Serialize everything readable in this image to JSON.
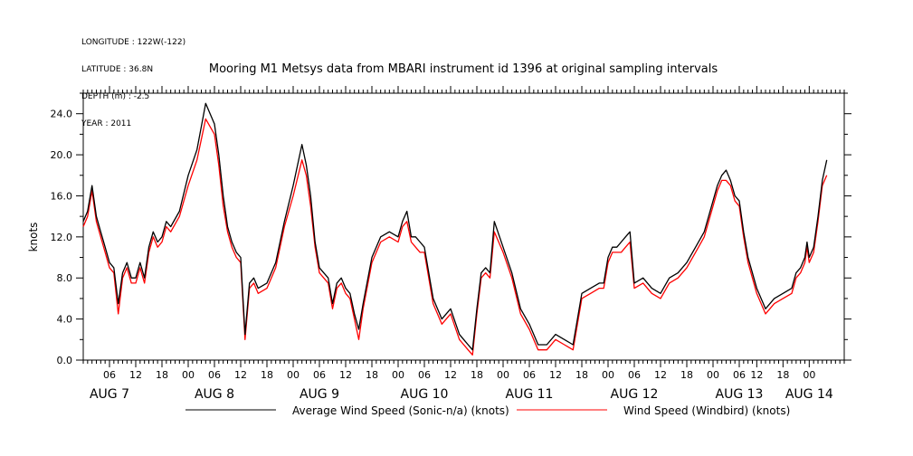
{
  "meta_lines": [
    "LONGITUDE : 122W(-122)",
    "LATITUDE : 36.8N",
    "DEPTH (m) : -2.5",
    "YEAR : 2011"
  ],
  "chart_data": {
    "type": "line",
    "title": "Mooring M1 Metsys data from MBARI instrument id 1396 at original sampling intervals",
    "ylabel": "knots",
    "xlabel": "",
    "ylim": [
      0,
      26
    ],
    "xlim_hours": [
      0,
      174
    ],
    "yticks": [
      "0.0",
      "4.0",
      "8.0",
      "12.0",
      "16.0",
      "20.0",
      "24.0"
    ],
    "yticks_values": [
      0,
      4,
      8,
      12,
      16,
      20,
      24
    ],
    "xtick_hour_labels": [
      "06",
      "12",
      "18",
      "00",
      "06",
      "12",
      "18",
      "00",
      "06",
      "12",
      "18",
      "00",
      "06",
      "12",
      "18",
      "00",
      "06",
      "12",
      "18",
      "00",
      "06",
      "12",
      "18",
      "00",
      "06",
      "12",
      "18",
      "00"
    ],
    "xtick_hour_values": [
      6,
      12,
      18,
      24,
      30,
      36,
      42,
      48,
      54,
      60,
      66,
      72,
      78,
      84,
      90,
      96,
      102,
      108,
      114,
      120,
      126,
      132,
      138,
      144,
      150,
      154,
      160,
      166
    ],
    "day_labels": [
      "AUG  7",
      "AUG  8",
      "AUG  9",
      "AUG 10",
      "AUG 11",
      "AUG 12",
      "AUG 13",
      "AUG 14"
    ],
    "day_label_hours": [
      6,
      30,
      54,
      78,
      102,
      126,
      150,
      166
    ],
    "grid": false,
    "legend_position": "bottom",
    "series": [
      {
        "name": "Average Wind Speed (Sonic-n/a) (knots)",
        "color": "#000000",
        "x": [
          0,
          1,
          2,
          3,
          4,
          5,
          6,
          7,
          8,
          9,
          10,
          11,
          12,
          13,
          14,
          15,
          16,
          17,
          18,
          19,
          20,
          22,
          24,
          26,
          28,
          30,
          31,
          32,
          33,
          34,
          35,
          36,
          37,
          38,
          39,
          40,
          42,
          44,
          46,
          48,
          50,
          51,
          52,
          53,
          54,
          55,
          56,
          57,
          58,
          59,
          60,
          61,
          62,
          63,
          64,
          66,
          68,
          70,
          72,
          73,
          74,
          75,
          76,
          77,
          78,
          80,
          82,
          84,
          86,
          87,
          88,
          89,
          90,
          91,
          92,
          93,
          94,
          96,
          98,
          100,
          102,
          104,
          106,
          108,
          110,
          112,
          114,
          116,
          118,
          119,
          120,
          121,
          122,
          123,
          124,
          125,
          126,
          128,
          130,
          132,
          134,
          136,
          138,
          140,
          142,
          144,
          145,
          146,
          147,
          148,
          149,
          150,
          151,
          152,
          153,
          154,
          156,
          158,
          160,
          162,
          163,
          164,
          165,
          165.5,
          166,
          167,
          168,
          169,
          170
        ],
        "y": [
          13.5,
          14.5,
          17.0,
          14.0,
          12.5,
          11.0,
          9.5,
          9.0,
          5.5,
          8.5,
          9.5,
          8.0,
          8.0,
          9.5,
          8.0,
          11.0,
          12.5,
          11.5,
          12.0,
          13.5,
          13.0,
          14.5,
          18.0,
          20.5,
          25.0,
          23.0,
          20.0,
          16.0,
          13.0,
          11.5,
          10.5,
          10.0,
          2.5,
          7.5,
          8.0,
          7.0,
          7.5,
          9.5,
          13.5,
          17.0,
          21.0,
          19.0,
          16.0,
          11.5,
          9.0,
          8.5,
          8.0,
          5.5,
          7.5,
          8.0,
          7.0,
          6.5,
          4.5,
          3.0,
          5.5,
          10.0,
          12.0,
          12.5,
          12.0,
          13.5,
          14.5,
          12.0,
          12.0,
          11.5,
          11.0,
          6.0,
          4.0,
          5.0,
          2.5,
          2.0,
          1.5,
          1.0,
          5.0,
          8.5,
          9.0,
          8.5,
          13.5,
          11.0,
          8.5,
          5.0,
          3.5,
          1.5,
          1.5,
          2.5,
          2.0,
          1.5,
          6.5,
          7.0,
          7.5,
          7.5,
          10.0,
          11.0,
          11.0,
          11.5,
          12.0,
          12.5,
          7.5,
          8.0,
          7.0,
          6.5,
          8.0,
          8.5,
          9.5,
          11.0,
          12.5,
          15.5,
          17.0,
          18.0,
          18.5,
          17.5,
          16.0,
          15.5,
          12.5,
          10.0,
          8.5,
          7.0,
          5.0,
          6.0,
          6.5,
          7.0,
          8.5,
          9.0,
          10.0,
          11.5,
          10.0,
          11.0,
          14.0,
          17.5,
          19.5
        ]
      },
      {
        "name": "Wind Speed (Windbird) (knots)",
        "color": "#ff0000",
        "x": [
          0,
          1,
          2,
          3,
          4,
          5,
          6,
          7,
          8,
          9,
          10,
          11,
          12,
          13,
          14,
          15,
          16,
          17,
          18,
          19,
          20,
          22,
          24,
          26,
          28,
          30,
          31,
          32,
          33,
          34,
          35,
          36,
          37,
          38,
          39,
          40,
          42,
          44,
          46,
          48,
          50,
          51,
          52,
          53,
          54,
          55,
          56,
          57,
          58,
          59,
          60,
          61,
          62,
          63,
          64,
          66,
          68,
          70,
          72,
          73,
          74,
          75,
          76,
          77,
          78,
          80,
          82,
          84,
          86,
          87,
          88,
          89,
          90,
          91,
          92,
          93,
          94,
          96,
          98,
          100,
          102,
          104,
          106,
          108,
          110,
          112,
          114,
          116,
          118,
          119,
          120,
          121,
          122,
          123,
          124,
          125,
          126,
          128,
          130,
          132,
          134,
          136,
          138,
          140,
          142,
          144,
          145,
          146,
          147,
          148,
          149,
          150,
          151,
          152,
          153,
          154,
          156,
          158,
          160,
          162,
          163,
          164,
          165,
          165.5,
          166,
          167,
          168,
          169,
          170
        ],
        "y": [
          13.0,
          14.0,
          16.5,
          13.5,
          12.0,
          10.5,
          9.0,
          8.5,
          4.5,
          8.0,
          9.0,
          7.5,
          7.5,
          9.0,
          7.5,
          10.5,
          12.0,
          11.0,
          11.5,
          13.0,
          12.5,
          14.0,
          17.0,
          19.5,
          23.5,
          22.0,
          19.0,
          15.0,
          12.5,
          11.0,
          10.0,
          9.5,
          2.0,
          7.0,
          7.5,
          6.5,
          7.0,
          9.0,
          13.0,
          16.0,
          19.5,
          18.0,
          15.0,
          11.0,
          8.5,
          8.0,
          7.5,
          5.0,
          7.0,
          7.5,
          6.5,
          6.0,
          4.0,
          2.0,
          5.0,
          9.5,
          11.5,
          12.0,
          11.5,
          13.0,
          13.5,
          11.5,
          11.0,
          10.5,
          10.5,
          5.5,
          3.5,
          4.5,
          2.0,
          1.5,
          1.0,
          0.5,
          4.5,
          8.0,
          8.5,
          8.0,
          12.5,
          10.5,
          8.0,
          4.5,
          3.0,
          1.0,
          1.0,
          2.0,
          1.5,
          1.0,
          6.0,
          6.5,
          7.0,
          7.0,
          9.5,
          10.5,
          10.5,
          10.5,
          11.0,
          11.5,
          7.0,
          7.5,
          6.5,
          6.0,
          7.5,
          8.0,
          9.0,
          10.5,
          12.0,
          15.0,
          16.5,
          17.5,
          17.5,
          17.0,
          15.5,
          15.0,
          12.0,
          9.5,
          8.0,
          6.5,
          4.5,
          5.5,
          6.0,
          6.5,
          8.0,
          8.5,
          9.5,
          11.0,
          9.5,
          10.5,
          13.5,
          17.0,
          18.0
        ]
      }
    ]
  },
  "legend": {
    "black_label": "Average Wind Speed (Sonic-n/a) (knots)",
    "red_label": "Wind Speed (Windbird) (knots)"
  }
}
